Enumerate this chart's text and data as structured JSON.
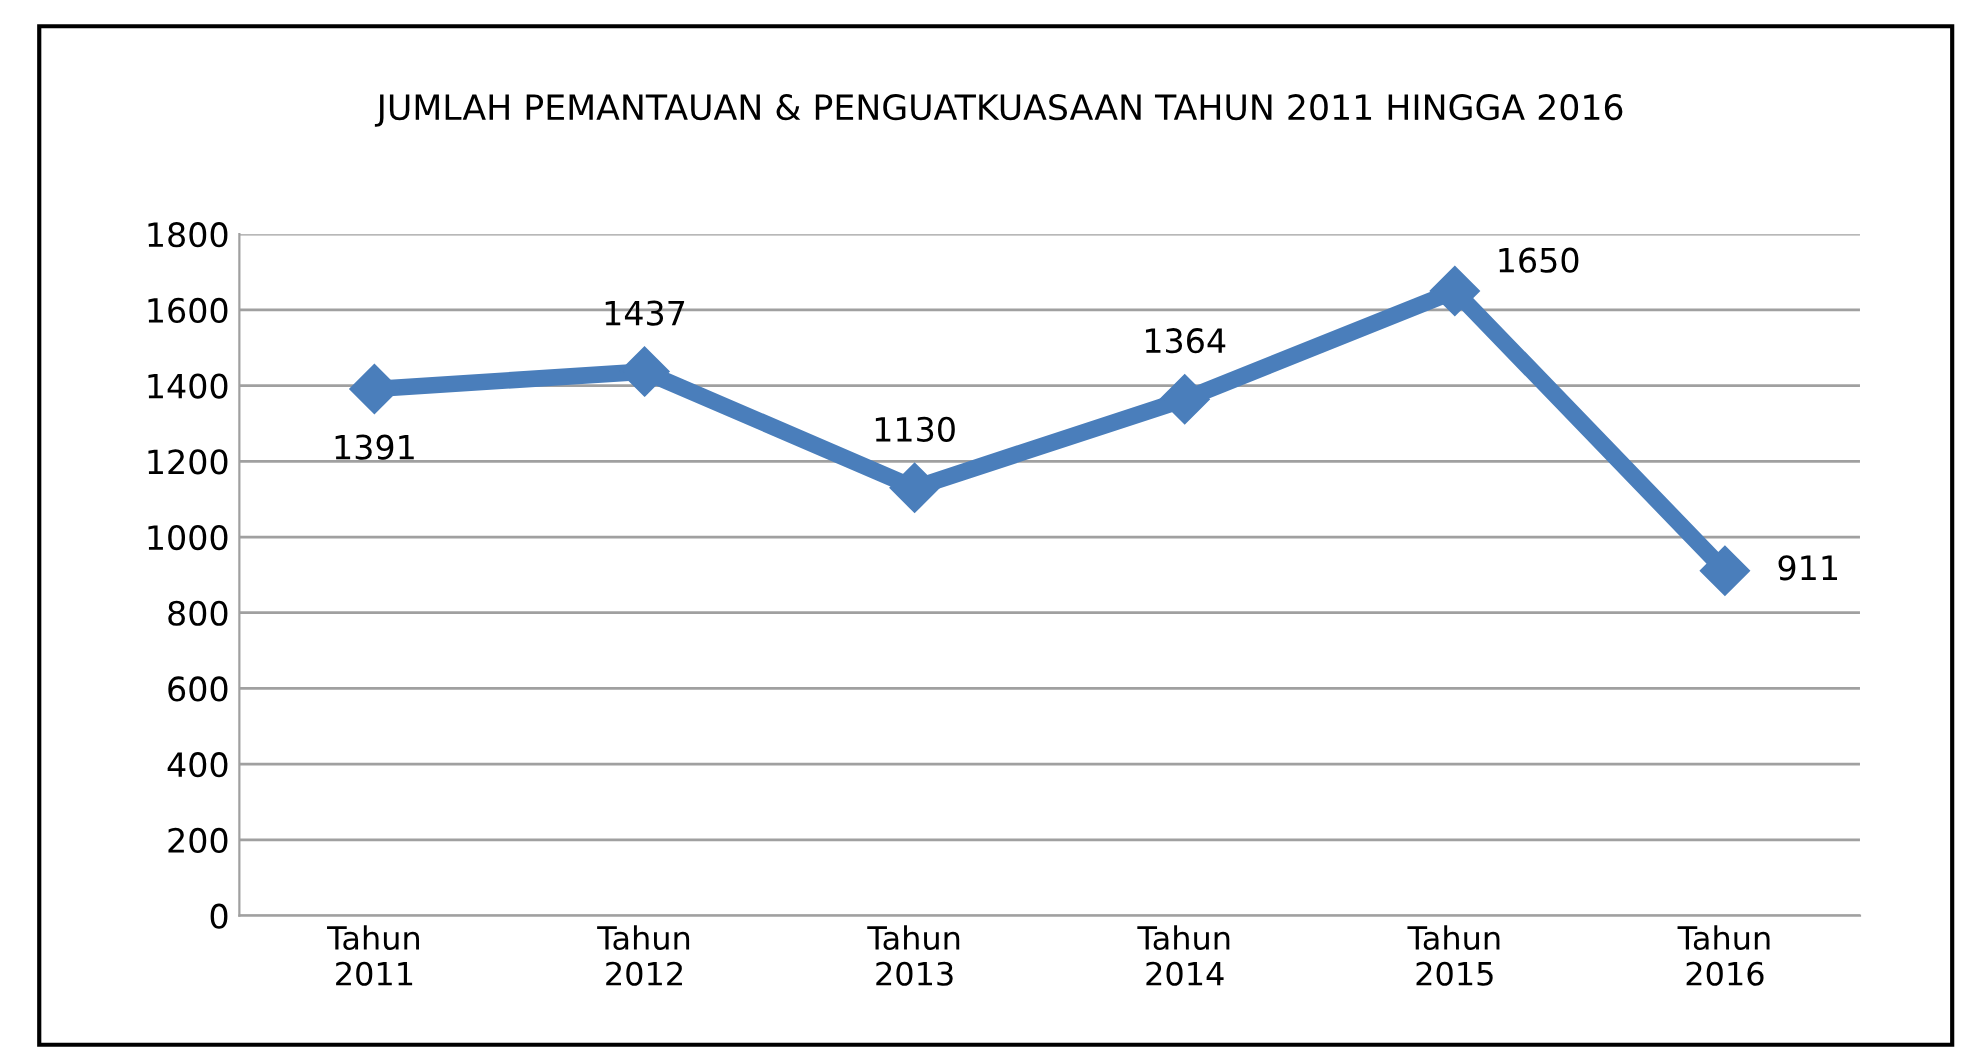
{
  "chart_data": {
    "type": "line",
    "title": "JUMLAH PEMANTAUAN & PENGUATKUASAAN TAHUN 2011 HINGGA 2016",
    "categories": [
      "Tahun\n2011",
      "Tahun\n2012",
      "Tahun\n2013",
      "Tahun\n2014",
      "Tahun\n2015",
      "Tahun\n2016"
    ],
    "series": [
      {
        "color": "#4a7ebb",
        "values": [
          1391,
          1437,
          1130,
          1364,
          1650,
          911
        ]
      }
    ],
    "ylim": [
      0,
      1800
    ],
    "yticks": [
      0,
      200,
      400,
      600,
      800,
      1000,
      1200,
      1400,
      1600,
      1800
    ],
    "grid": "y",
    "marker": "diamond",
    "line_style": "solid",
    "data_labels": true,
    "legend": false
  }
}
